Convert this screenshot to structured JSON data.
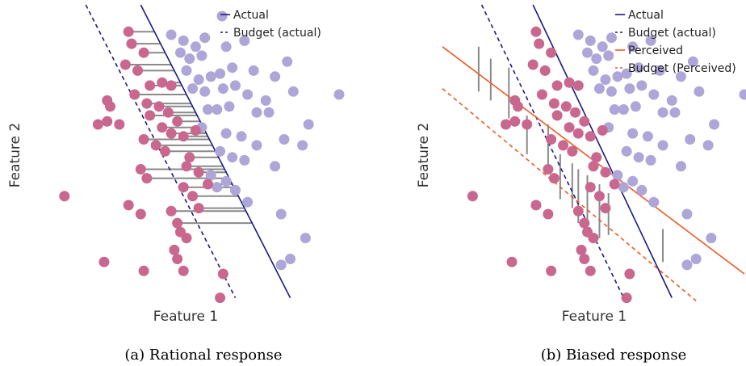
{
  "figure": {
    "colors": {
      "positive": "#c9678e",
      "negative": "#aea6d8",
      "actual": "#1c1a80",
      "perceived": "#ee5a24",
      "movement": "#8a8a8a"
    }
  },
  "chart_data": [
    {
      "type": "scatter",
      "caption": "(a) Rational response",
      "xlabel": "Feature 1",
      "ylabel": "Feature 2",
      "xlim": [
        0,
        10
      ],
      "ylim": [
        0,
        10
      ],
      "ticks_shown": false,
      "grid": false,
      "legend_position": "top-right",
      "legend": [
        {
          "label": "Actual",
          "color": "#1c1a80",
          "style": "solid"
        },
        {
          "label": "Budget (actual)",
          "color": "#1c1a80",
          "style": "dashed"
        }
      ],
      "lines": [
        {
          "name": "Actual",
          "style": "solid",
          "color": "#1c1a80",
          "points": [
            [
              3.5,
              10.0
            ],
            [
              8.4,
              0.2
            ]
          ]
        },
        {
          "name": "Budget (actual)",
          "style": "dashed",
          "color": "#1c1a80",
          "points": [
            [
              1.7,
              10.0
            ],
            [
              6.6,
              0.2
            ]
          ]
        }
      ],
      "series": [
        {
          "name": "negative",
          "color": "#aea6d8",
          "points": [
            [
              4.5,
              9.0
            ],
            [
              4.9,
              8.8
            ],
            [
              5.3,
              8.6
            ],
            [
              5.6,
              8.9
            ],
            [
              4.8,
              8.4
            ],
            [
              5.1,
              8.2
            ],
            [
              5.5,
              8.3
            ],
            [
              6.3,
              8.6
            ],
            [
              6.9,
              8.8
            ],
            [
              8.3,
              8.1
            ],
            [
              5.0,
              7.8
            ],
            [
              5.4,
              7.5
            ],
            [
              5.8,
              7.6
            ],
            [
              6.1,
              7.7
            ],
            [
              6.5,
              7.9
            ],
            [
              7.2,
              7.8
            ],
            [
              7.9,
              7.6
            ],
            [
              5.2,
              7.2
            ],
            [
              5.6,
              7.1
            ],
            [
              6.2,
              7.2
            ],
            [
              6.6,
              7.3
            ],
            [
              7.0,
              7.0
            ],
            [
              7.6,
              6.8
            ],
            [
              8.5,
              7.1
            ],
            [
              10.0,
              7.0
            ],
            [
              5.7,
              6.5
            ],
            [
              6.0,
              6.5
            ],
            [
              6.4,
              6.6
            ],
            [
              7.3,
              6.4
            ],
            [
              7.7,
              6.4
            ],
            [
              9.0,
              6.0
            ],
            [
              5.5,
              5.9
            ],
            [
              6.3,
              5.7
            ],
            [
              6.8,
              5.6
            ],
            [
              7.3,
              5.3
            ],
            [
              8.2,
              5.5
            ],
            [
              8.8,
              5.3
            ],
            [
              6.1,
              5.1
            ],
            [
              6.5,
              4.9
            ],
            [
              6.9,
              4.8
            ],
            [
              7.9,
              4.6
            ],
            [
              6.3,
              4.1
            ],
            [
              6.6,
              3.8
            ],
            [
              7.0,
              3.4
            ],
            [
              8.1,
              3.0
            ],
            [
              5.8,
              4.3
            ],
            [
              6.0,
              3.9
            ],
            [
              8.9,
              2.2
            ],
            [
              8.4,
              1.5
            ],
            [
              8.1,
              1.3
            ]
          ]
        },
        {
          "name": "positive",
          "color": "#c9678e",
          "points": [
            [
              3.1,
              9.1
            ],
            [
              3.2,
              8.7
            ],
            [
              3.6,
              8.4
            ],
            [
              3.0,
              8.0
            ],
            [
              3.4,
              7.8
            ],
            [
              3.8,
              7.3
            ],
            [
              4.2,
              7.4
            ],
            [
              4.5,
              7.3
            ],
            [
              3.3,
              7.0
            ],
            [
              3.7,
              6.7
            ],
            [
              4.1,
              6.6
            ],
            [
              4.4,
              6.4
            ],
            [
              4.7,
              6.1
            ],
            [
              2.4,
              6.8
            ],
            [
              2.5,
              6.6
            ],
            [
              2.1,
              6.0
            ],
            [
              2.4,
              6.1
            ],
            [
              2.8,
              6.0
            ],
            [
              3.8,
              6.3
            ],
            [
              4.2,
              5.9
            ],
            [
              4.5,
              5.7
            ],
            [
              4.9,
              5.6
            ],
            [
              5.3,
              5.8
            ],
            [
              3.6,
              5.5
            ],
            [
              4.0,
              5.3
            ],
            [
              4.3,
              5.1
            ],
            [
              5.1,
              4.9
            ],
            [
              3.5,
              4.5
            ],
            [
              3.7,
              4.2
            ],
            [
              5.0,
              4.6
            ],
            [
              5.4,
              4.4
            ],
            [
              5.7,
              4.0
            ],
            [
              4.9,
              3.9
            ],
            [
              5.2,
              3.6
            ],
            [
              5.4,
              3.2
            ],
            [
              1.0,
              3.6
            ],
            [
              3.1,
              3.3
            ],
            [
              3.5,
              3.0
            ],
            [
              4.5,
              3.1
            ],
            [
              4.7,
              2.7
            ],
            [
              4.8,
              2.4
            ],
            [
              5.0,
              2.2
            ],
            [
              4.6,
              1.8
            ],
            [
              4.7,
              1.5
            ],
            [
              4.9,
              1.1
            ],
            [
              2.3,
              1.4
            ],
            [
              3.6,
              1.1
            ],
            [
              6.2,
              1.0
            ],
            [
              6.1,
              0.2
            ]
          ]
        }
      ],
      "movement_segments_count": 32
    },
    {
      "type": "scatter",
      "caption": "(b) Biased response",
      "xlabel": "Feature 1",
      "ylabel": "Feature 2",
      "xlim": [
        0,
        10
      ],
      "ylim": [
        0,
        10
      ],
      "ticks_shown": false,
      "grid": false,
      "legend_position": "top-right",
      "legend": [
        {
          "label": "Actual",
          "color": "#1c1a80",
          "style": "solid"
        },
        {
          "label": "Budget (actual)",
          "color": "#1c1a80",
          "style": "dashed"
        },
        {
          "label": "Perceived",
          "color": "#ee5a24",
          "style": "solid"
        },
        {
          "label": "Budget (Perceived)",
          "color": "#ee5a24",
          "style": "dashed"
        }
      ],
      "lines": [
        {
          "name": "Actual",
          "style": "solid",
          "color": "#1c1a80",
          "points": [
            [
              3.0,
              10.0
            ],
            [
              7.6,
              0.2
            ]
          ]
        },
        {
          "name": "Budget (actual)",
          "style": "dashed",
          "color": "#1c1a80",
          "points": [
            [
              1.3,
              10.0
            ],
            [
              6.0,
              0.2
            ]
          ]
        },
        {
          "name": "Perceived",
          "style": "solid",
          "color": "#ee5a24",
          "points": [
            [
              0.0,
              8.6
            ],
            [
              10.0,
              1.0
            ]
          ]
        },
        {
          "name": "Budget (Perceived)",
          "style": "dashed",
          "color": "#ee5a24",
          "points": [
            [
              0.0,
              7.2
            ],
            [
              8.4,
              0.1
            ]
          ]
        }
      ],
      "series": [
        {
          "name": "negative",
          "color": "#aea6d8",
          "points": [
            [
              4.5,
              9.0
            ],
            [
              4.9,
              8.8
            ],
            [
              5.3,
              8.6
            ],
            [
              5.6,
              8.9
            ],
            [
              4.8,
              8.4
            ],
            [
              5.1,
              8.2
            ],
            [
              5.5,
              8.3
            ],
            [
              6.3,
              8.6
            ],
            [
              6.9,
              8.8
            ],
            [
              8.3,
              8.1
            ],
            [
              5.0,
              7.8
            ],
            [
              5.4,
              7.5
            ],
            [
              5.8,
              7.6
            ],
            [
              6.1,
              7.7
            ],
            [
              6.5,
              7.9
            ],
            [
              7.2,
              7.8
            ],
            [
              7.9,
              7.6
            ],
            [
              5.2,
              7.2
            ],
            [
              5.6,
              7.1
            ],
            [
              6.2,
              7.2
            ],
            [
              6.6,
              7.3
            ],
            [
              7.0,
              7.0
            ],
            [
              7.6,
              6.8
            ],
            [
              8.5,
              7.1
            ],
            [
              10.0,
              7.0
            ],
            [
              5.7,
              6.5
            ],
            [
              6.0,
              6.5
            ],
            [
              6.4,
              6.6
            ],
            [
              7.3,
              6.4
            ],
            [
              7.7,
              6.4
            ],
            [
              9.0,
              6.0
            ],
            [
              5.5,
              5.9
            ],
            [
              6.3,
              5.7
            ],
            [
              6.8,
              5.6
            ],
            [
              7.3,
              5.3
            ],
            [
              8.2,
              5.5
            ],
            [
              8.8,
              5.3
            ],
            [
              6.1,
              5.1
            ],
            [
              6.5,
              4.9
            ],
            [
              6.9,
              4.8
            ],
            [
              7.9,
              4.6
            ],
            [
              6.3,
              4.1
            ],
            [
              6.6,
              3.8
            ],
            [
              7.0,
              3.4
            ],
            [
              8.1,
              3.0
            ],
            [
              5.8,
              4.3
            ],
            [
              6.0,
              3.9
            ],
            [
              8.9,
              2.2
            ],
            [
              8.4,
              1.5
            ],
            [
              8.1,
              1.3
            ]
          ]
        },
        {
          "name": "positive",
          "color": "#c9678e",
          "points": [
            [
              3.1,
              9.1
            ],
            [
              3.2,
              8.7
            ],
            [
              3.6,
              8.4
            ],
            [
              3.0,
              8.0
            ],
            [
              3.4,
              7.8
            ],
            [
              3.8,
              7.3
            ],
            [
              4.2,
              7.4
            ],
            [
              4.5,
              7.3
            ],
            [
              3.3,
              7.0
            ],
            [
              3.7,
              6.7
            ],
            [
              4.1,
              6.6
            ],
            [
              4.4,
              6.4
            ],
            [
              4.7,
              6.1
            ],
            [
              2.4,
              6.8
            ],
            [
              2.5,
              6.6
            ],
            [
              2.1,
              6.0
            ],
            [
              2.4,
              6.1
            ],
            [
              2.8,
              6.0
            ],
            [
              3.8,
              6.3
            ],
            [
              4.2,
              5.9
            ],
            [
              4.5,
              5.7
            ],
            [
              4.9,
              5.6
            ],
            [
              5.3,
              5.8
            ],
            [
              3.6,
              5.5
            ],
            [
              4.0,
              5.3
            ],
            [
              4.3,
              5.1
            ],
            [
              5.1,
              4.9
            ],
            [
              3.5,
              4.5
            ],
            [
              3.7,
              4.2
            ],
            [
              5.0,
              4.6
            ],
            [
              5.4,
              4.4
            ],
            [
              5.7,
              4.0
            ],
            [
              4.9,
              3.9
            ],
            [
              5.2,
              3.6
            ],
            [
              5.4,
              3.2
            ],
            [
              1.0,
              3.6
            ],
            [
              3.1,
              3.3
            ],
            [
              3.5,
              3.0
            ],
            [
              4.5,
              3.1
            ],
            [
              4.7,
              2.7
            ],
            [
              4.8,
              2.4
            ],
            [
              5.0,
              2.2
            ],
            [
              4.6,
              1.8
            ],
            [
              4.7,
              1.5
            ],
            [
              4.9,
              1.1
            ],
            [
              2.3,
              1.4
            ],
            [
              3.6,
              1.1
            ],
            [
              6.2,
              1.0
            ],
            [
              6.1,
              0.2
            ]
          ]
        }
      ],
      "movement_segments": [
        [
          [
            1.2,
            8.6
          ],
          [
            1.2,
            7.1
          ]
        ],
        [
          [
            1.6,
            8.2
          ],
          [
            1.6,
            6.8
          ]
        ],
        [
          [
            2.2,
            7.9
          ],
          [
            2.2,
            6.2
          ]
        ],
        [
          [
            2.8,
            6.3
          ],
          [
            2.8,
            5.0
          ]
        ],
        [
          [
            3.5,
            6.0
          ],
          [
            3.5,
            4.6
          ]
        ],
        [
          [
            3.9,
            5.0
          ],
          [
            3.9,
            3.5
          ]
        ],
        [
          [
            4.3,
            4.7
          ],
          [
            4.3,
            3.2
          ]
        ],
        [
          [
            4.5,
            4.5
          ],
          [
            4.5,
            2.7
          ]
        ],
        [
          [
            4.8,
            4.3
          ],
          [
            4.8,
            2.5
          ]
        ],
        [
          [
            5.2,
            4.0
          ],
          [
            5.2,
            2.2
          ]
        ],
        [
          [
            5.5,
            3.7
          ],
          [
            5.5,
            2.3
          ]
        ],
        [
          [
            7.3,
            2.5
          ],
          [
            7.3,
            1.4
          ]
        ]
      ]
    }
  ]
}
